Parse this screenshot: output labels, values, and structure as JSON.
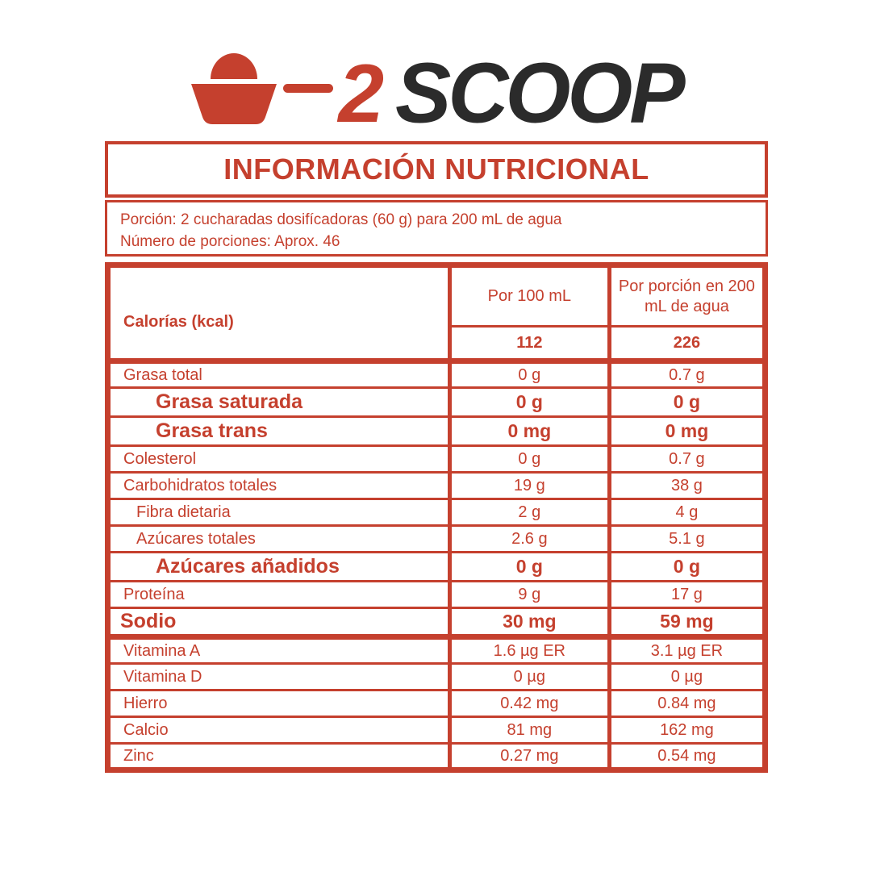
{
  "colors": {
    "accent": "#C5402E",
    "dark": "#2B2B2B"
  },
  "logo": {
    "scoop_icon": "scoop-icon",
    "count": "2",
    "brand": "SCOOP"
  },
  "header": {
    "title": "INFORMACIÓN NUTRICIONAL",
    "serving_line1": "Porción: 2 cucharadas dosifícadoras (60 g) para 200 mL de agua",
    "serving_line2": "Número de porciones: Aprox. 46"
  },
  "table": {
    "header": {
      "calories_label": "Calorías (kcal)",
      "col_per_100ml": "Por 100 mL",
      "col_per_portion": "Por porción en 200 mL de agua",
      "calories_per_100ml": "112",
      "calories_per_portion": "226"
    },
    "rows": [
      {
        "label": "Grasa total",
        "per_100ml": "0 g",
        "per_portion": "0.7 g",
        "style": "regular",
        "thick_top": true
      },
      {
        "label": "Grasa saturada",
        "per_100ml": "0 g",
        "per_portion": "0 g",
        "style": "bold-indent",
        "thick_top": false
      },
      {
        "label": "Grasa trans",
        "per_100ml": "0 mg",
        "per_portion": "0 mg",
        "style": "bold-indent",
        "thick_top": false
      },
      {
        "label": "Colesterol",
        "per_100ml": "0 g",
        "per_portion": "0.7 g",
        "style": "regular",
        "thick_top": false
      },
      {
        "label": "Carbohidratos totales",
        "per_100ml": "19 g",
        "per_portion": "38 g",
        "style": "regular",
        "thick_top": false
      },
      {
        "label": "Fibra dietaria",
        "per_100ml": "2 g",
        "per_portion": "4 g",
        "style": "indent",
        "thick_top": false
      },
      {
        "label": "Azúcares totales",
        "per_100ml": "2.6 g",
        "per_portion": "5.1 g",
        "style": "indent",
        "thick_top": false
      },
      {
        "label": "Azúcares añadidos",
        "per_100ml": "0 g",
        "per_portion": "0 g",
        "style": "bold-indent",
        "thick_top": false
      },
      {
        "label": "Proteína",
        "per_100ml": "9 g",
        "per_portion": "17 g",
        "style": "regular",
        "thick_top": false
      },
      {
        "label": "Sodio",
        "per_100ml": "30 mg",
        "per_portion": "59 mg",
        "style": "bold",
        "thick_top": false
      },
      {
        "label": "Vitamina A",
        "per_100ml": "1.6 µg ER",
        "per_portion": "3.1 µg ER",
        "style": "regular",
        "thick_top": true
      },
      {
        "label": "Vitamina D",
        "per_100ml": "0 µg",
        "per_portion": "0 µg",
        "style": "regular",
        "thick_top": false
      },
      {
        "label": "Hierro",
        "per_100ml": "0.42 mg",
        "per_portion": "0.84 mg",
        "style": "regular",
        "thick_top": false
      },
      {
        "label": "Calcio",
        "per_100ml": "81 mg",
        "per_portion": "162 mg",
        "style": "regular",
        "thick_top": false
      },
      {
        "label": "Zinc",
        "per_100ml": "0.27 mg",
        "per_portion": "0.54 mg",
        "style": "regular",
        "thick_top": false
      }
    ]
  }
}
